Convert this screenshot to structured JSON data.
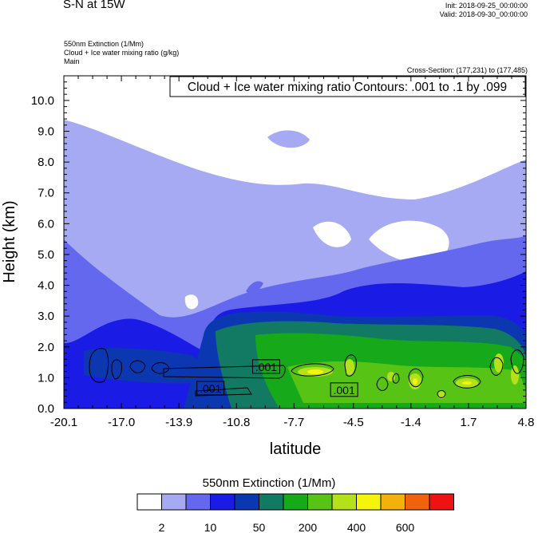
{
  "header": {
    "title": "S-N at 15W",
    "init": "Init: 2018-09-25_00:00:00",
    "valid": "Valid: 2018-09-30_00:00:00",
    "field1": "550nm Extinction   (1/Mm)",
    "field2": "Cloud + Ice water mixing ratio   (g/kg)",
    "field3": "Main",
    "cross_section": "Cross-Section: (177,231) to (177,485)"
  },
  "chart_data": {
    "type": "heatmap",
    "title": "Cloud + Ice water mixing ratio Contours: .001 to .1 by .099",
    "xlabel": "latitude",
    "ylabel": "Height (km)",
    "xlim": [
      -20.1,
      4.8
    ],
    "ylim": [
      0.0,
      10.8
    ],
    "x_ticks": [
      "-20.1",
      "-17.0",
      "-13.9",
      "-10.8",
      "-7.7",
      "-4.5",
      "-1.4",
      "1.7",
      "4.8"
    ],
    "x_tick_values": [
      -20.1,
      -17.0,
      -13.9,
      -10.8,
      -7.7,
      -4.5,
      -1.4,
      1.7,
      4.8
    ],
    "y_ticks": [
      "0.0",
      "1.0",
      "2.0",
      "3.0",
      "4.0",
      "5.0",
      "6.0",
      "7.0",
      "8.0",
      "9.0",
      "10.0"
    ],
    "y_tick_values": [
      0,
      1,
      2,
      3,
      4,
      5,
      6,
      7,
      8,
      9,
      10
    ],
    "contour_labels": [
      {
        "text": ".001",
        "x": -12.2,
        "y": 0.65
      },
      {
        "text": ".001",
        "x": -9.2,
        "y": 1.35
      },
      {
        "text": ".001",
        "x": -5.0,
        "y": 0.6
      }
    ],
    "colorbar": {
      "title": "550nm Extinction  (1/Mm)",
      "colors": [
        "#ffffff",
        "#a5aaf2",
        "#6468ef",
        "#1a1ce6",
        "#0b37b0",
        "#127a63",
        "#16a91a",
        "#57c415",
        "#b5e11b",
        "#f5f50c",
        "#f3b10b",
        "#f0630c",
        "#ef1212"
      ],
      "labels": [
        "2",
        "10",
        "50",
        "200",
        "400",
        "600"
      ]
    }
  }
}
